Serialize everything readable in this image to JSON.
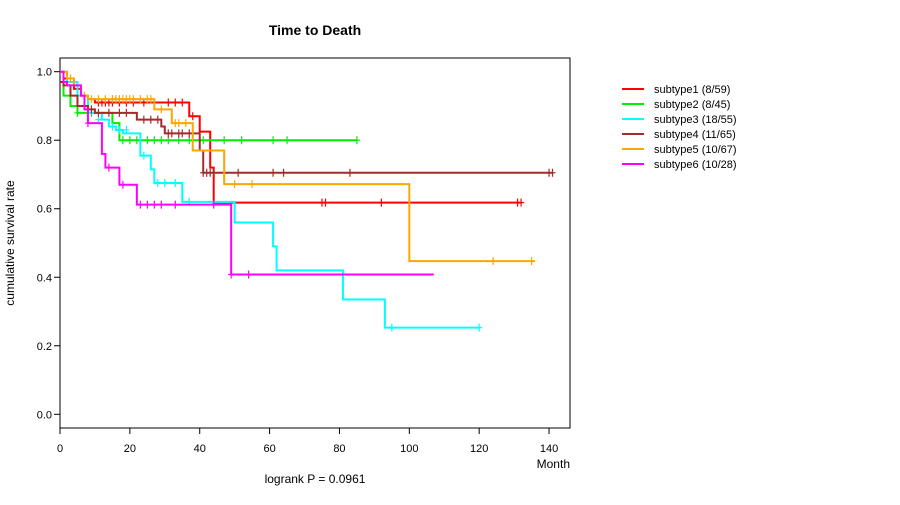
{
  "chart_data": {
    "type": "line",
    "title": "Time to Death",
    "xlabel": "Month",
    "ylabel": "cumulative survival rate",
    "footnote": "logrank P = 0.0961",
    "xlim": [
      0,
      146
    ],
    "ylim": [
      -0.04,
      1.04
    ],
    "xticks": [
      0,
      20,
      40,
      60,
      80,
      100,
      120,
      140
    ],
    "yticks": [
      0.0,
      0.2,
      0.4,
      0.6,
      0.8,
      1.0
    ],
    "xtick_labels": [
      "0",
      "20",
      "40",
      "60",
      "80",
      "100",
      "120",
      "140"
    ],
    "ytick_labels": [
      "0.0",
      "0.2",
      "0.4",
      "0.6",
      "0.8",
      "1.0"
    ],
    "legend_position": "right",
    "series": [
      {
        "name": "subtype1 (8/59)",
        "color": "#ff0000",
        "steps": [
          [
            0,
            1.0
          ],
          [
            1,
            0.98
          ],
          [
            2,
            0.97
          ],
          [
            4,
            0.95
          ],
          [
            6,
            0.93
          ],
          [
            8,
            0.92
          ],
          [
            10,
            0.91
          ],
          [
            37,
            0.87
          ],
          [
            40,
            0.825
          ],
          [
            43,
            0.72
          ],
          [
            44,
            0.618
          ],
          [
            132,
            0.618
          ]
        ],
        "censor": [
          [
            11,
            0.91
          ],
          [
            12,
            0.91
          ],
          [
            13,
            0.91
          ],
          [
            14,
            0.91
          ],
          [
            15,
            0.91
          ],
          [
            17,
            0.91
          ],
          [
            19,
            0.91
          ],
          [
            21,
            0.91
          ],
          [
            24,
            0.91
          ],
          [
            27,
            0.91
          ],
          [
            31,
            0.91
          ],
          [
            33,
            0.91
          ],
          [
            35,
            0.91
          ],
          [
            38,
            0.87
          ],
          [
            75,
            0.618
          ],
          [
            76,
            0.618
          ],
          [
            92,
            0.618
          ],
          [
            131,
            0.618
          ],
          [
            132,
            0.618
          ]
        ]
      },
      {
        "name": "subtype2 (8/45)",
        "color": "#00ee00",
        "steps": [
          [
            0,
            1.0
          ],
          [
            1,
            0.93
          ],
          [
            3,
            0.9
          ],
          [
            5,
            0.88
          ],
          [
            15,
            0.85
          ],
          [
            17,
            0.8
          ],
          [
            85,
            0.8
          ]
        ],
        "censor": [
          [
            5,
            0.88
          ],
          [
            9,
            0.88
          ],
          [
            18,
            0.8
          ],
          [
            20,
            0.8
          ],
          [
            22,
            0.8
          ],
          [
            25,
            0.8
          ],
          [
            27,
            0.8
          ],
          [
            29,
            0.8
          ],
          [
            31,
            0.8
          ],
          [
            34,
            0.8
          ],
          [
            37,
            0.8
          ],
          [
            41,
            0.8
          ],
          [
            47,
            0.8
          ],
          [
            52,
            0.8
          ],
          [
            61,
            0.8
          ],
          [
            65,
            0.8
          ],
          [
            85,
            0.8
          ]
        ]
      },
      {
        "name": "subtype3 (18/55)",
        "color": "#00ffff",
        "steps": [
          [
            0,
            1.0
          ],
          [
            2,
            0.97
          ],
          [
            5,
            0.93
          ],
          [
            8,
            0.88
          ],
          [
            12,
            0.86
          ],
          [
            14,
            0.84
          ],
          [
            16,
            0.83
          ],
          [
            18,
            0.82
          ],
          [
            23,
            0.755
          ],
          [
            26,
            0.715
          ],
          [
            27,
            0.675
          ],
          [
            35,
            0.62
          ],
          [
            50,
            0.56
          ],
          [
            61,
            0.49
          ],
          [
            62,
            0.42
          ],
          [
            81,
            0.335
          ],
          [
            93,
            0.253
          ],
          [
            120,
            0.253
          ]
        ],
        "censor": [
          [
            11,
            0.86
          ],
          [
            15,
            0.84
          ],
          [
            17,
            0.83
          ],
          [
            19,
            0.83
          ],
          [
            24,
            0.755
          ],
          [
            28,
            0.675
          ],
          [
            30,
            0.675
          ],
          [
            33,
            0.675
          ],
          [
            37,
            0.62
          ],
          [
            95,
            0.253
          ],
          [
            120,
            0.253
          ]
        ]
      },
      {
        "name": "subtype4 (11/65)",
        "color": "#a52a2a",
        "steps": [
          [
            0,
            0.97
          ],
          [
            1,
            0.96
          ],
          [
            3,
            0.93
          ],
          [
            5,
            0.9
          ],
          [
            8,
            0.89
          ],
          [
            10,
            0.88
          ],
          [
            22,
            0.86
          ],
          [
            29,
            0.84
          ],
          [
            30,
            0.82
          ],
          [
            40,
            0.77
          ],
          [
            41,
            0.705
          ],
          [
            141,
            0.705
          ]
        ],
        "censor": [
          [
            9,
            0.89
          ],
          [
            11,
            0.88
          ],
          [
            14,
            0.88
          ],
          [
            17,
            0.88
          ],
          [
            19,
            0.88
          ],
          [
            24,
            0.86
          ],
          [
            26,
            0.86
          ],
          [
            28,
            0.86
          ],
          [
            31,
            0.82
          ],
          [
            32,
            0.82
          ],
          [
            34,
            0.82
          ],
          [
            35,
            0.82
          ],
          [
            37,
            0.82
          ],
          [
            41,
            0.705
          ],
          [
            42,
            0.705
          ],
          [
            43,
            0.705
          ],
          [
            44,
            0.705
          ],
          [
            51,
            0.705
          ],
          [
            61,
            0.705
          ],
          [
            64,
            0.705
          ],
          [
            83,
            0.705
          ],
          [
            140,
            0.705
          ],
          [
            141,
            0.705
          ]
        ]
      },
      {
        "name": "subtype5 (10/67)",
        "color": "#ffa500",
        "steps": [
          [
            0,
            1.0
          ],
          [
            2,
            0.98
          ],
          [
            4,
            0.96
          ],
          [
            6,
            0.93
          ],
          [
            8,
            0.92
          ],
          [
            27,
            0.89
          ],
          [
            32,
            0.85
          ],
          [
            38,
            0.77
          ],
          [
            47,
            0.672
          ],
          [
            100,
            0.447
          ],
          [
            136,
            0.447
          ]
        ],
        "censor": [
          [
            3,
            0.98
          ],
          [
            7,
            0.93
          ],
          [
            9,
            0.92
          ],
          [
            11,
            0.92
          ],
          [
            13,
            0.92
          ],
          [
            15,
            0.92
          ],
          [
            16,
            0.92
          ],
          [
            17,
            0.92
          ],
          [
            18,
            0.92
          ],
          [
            19,
            0.92
          ],
          [
            20,
            0.92
          ],
          [
            21,
            0.92
          ],
          [
            23,
            0.92
          ],
          [
            25,
            0.92
          ],
          [
            26,
            0.92
          ],
          [
            29,
            0.89
          ],
          [
            33,
            0.85
          ],
          [
            34,
            0.85
          ],
          [
            36,
            0.85
          ],
          [
            50,
            0.672
          ],
          [
            55,
            0.672
          ],
          [
            124,
            0.447
          ],
          [
            135,
            0.447
          ]
        ]
      },
      {
        "name": "subtype6 (10/28)",
        "color": "#ff00ff",
        "steps": [
          [
            0,
            1.0
          ],
          [
            1,
            0.97
          ],
          [
            2,
            0.96
          ],
          [
            6,
            0.93
          ],
          [
            7,
            0.89
          ],
          [
            8,
            0.85
          ],
          [
            12,
            0.76
          ],
          [
            13,
            0.72
          ],
          [
            17,
            0.67
          ],
          [
            22,
            0.612
          ],
          [
            49,
            0.408
          ],
          [
            107,
            0.408
          ]
        ],
        "censor": [
          [
            8,
            0.85
          ],
          [
            14,
            0.72
          ],
          [
            18,
            0.67
          ],
          [
            23,
            0.612
          ],
          [
            25,
            0.612
          ],
          [
            27,
            0.612
          ],
          [
            29,
            0.612
          ],
          [
            33,
            0.612
          ],
          [
            44,
            0.612
          ],
          [
            49,
            0.408
          ],
          [
            54,
            0.408
          ]
        ]
      }
    ]
  }
}
